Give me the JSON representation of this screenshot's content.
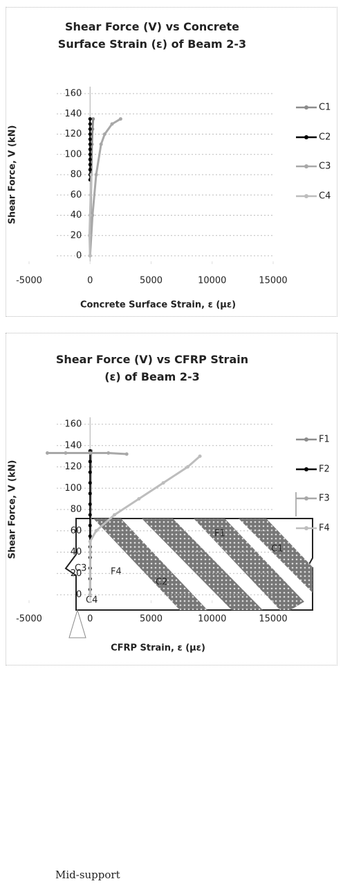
{
  "chart_data": [
    {
      "type": "line",
      "title": "Shear Force (V) vs Concrete Surface Strain (ε) of Beam 2-3",
      "x_label": "Concrete Surface Strain, ε (με)",
      "y_label": "Shear Force, V (kN)",
      "xlim": [
        -5000,
        15000
      ],
      "xticks": [
        -5000,
        0,
        5000,
        10000,
        15000
      ],
      "ylim": [
        0,
        160
      ],
      "yticks": [
        0,
        20,
        40,
        60,
        80,
        100,
        120,
        140,
        160
      ],
      "grid": true,
      "legend": "right",
      "series": [
        {
          "name": "C1",
          "color": "#8c8c8c",
          "x": [
            0,
            50,
            100,
            150,
            200,
            250
          ],
          "values": [
            0,
            40,
            80,
            110,
            125,
            135
          ]
        },
        {
          "name": "C2",
          "color": "#000000",
          "x": [
            0,
            0,
            0,
            0,
            0,
            0,
            0,
            0,
            0,
            0,
            0,
            0,
            0
          ],
          "values": [
            75,
            80,
            85,
            90,
            95,
            100,
            105,
            110,
            115,
            120,
            125,
            130,
            135
          ]
        },
        {
          "name": "C3",
          "color": "#a8a8a8",
          "x": [
            0,
            200,
            500,
            900,
            1200,
            1800,
            2500
          ],
          "values": [
            0,
            40,
            80,
            110,
            120,
            130,
            135
          ]
        },
        {
          "name": "C4",
          "color": "#bdbdbd",
          "x": [
            0,
            -50,
            0,
            50,
            100
          ],
          "values": [
            0,
            20,
            40,
            60,
            80
          ]
        }
      ]
    },
    {
      "type": "line",
      "title": "Shear Force (V) vs CFRP Strain (ε) of Beam 2-3",
      "x_label": "CFRP Strain, ε (με)",
      "y_label": "Shear Force, V (kN)",
      "xlim": [
        -5000,
        15000
      ],
      "xticks": [
        -5000,
        0,
        5000,
        10000,
        15000
      ],
      "ylim": [
        0,
        160
      ],
      "yticks": [
        0,
        20,
        40,
        60,
        80,
        100,
        120,
        140,
        160
      ],
      "grid": true,
      "legend": "right",
      "series": [
        {
          "name": "F1",
          "color": "#8c8c8c",
          "x": [
            0,
            20,
            40,
            60,
            80
          ],
          "values": [
            0,
            40,
            80,
            120,
            135
          ]
        },
        {
          "name": "F2",
          "color": "#000000",
          "x": [
            0,
            0,
            0,
            0,
            0,
            0,
            0,
            0,
            0,
            0,
            0,
            0,
            0,
            0
          ],
          "values": [
            5,
            15,
            25,
            35,
            45,
            55,
            65,
            75,
            85,
            95,
            105,
            115,
            125,
            135
          ]
        },
        {
          "name": "F3",
          "color": "#a8a8a8",
          "x": [
            -3500,
            -2000,
            0,
            1500,
            3000
          ],
          "values": [
            133,
            133,
            133,
            133,
            132
          ]
        },
        {
          "name": "F4",
          "color": "#bdbdbd",
          "x": [
            0,
            0,
            500,
            2000,
            4000,
            6000,
            8000,
            9000
          ],
          "values": [
            0,
            50,
            60,
            75,
            90,
            105,
            120,
            130
          ]
        }
      ]
    }
  ],
  "diagram": {
    "labels": [
      "C1",
      "C2",
      "C3",
      "C4",
      "F1",
      "F4"
    ],
    "caption": "Mid-support"
  }
}
